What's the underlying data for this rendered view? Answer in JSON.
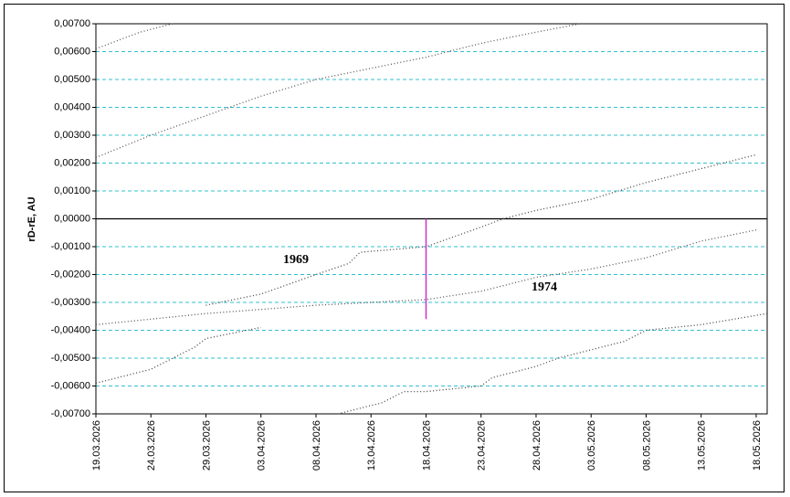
{
  "chart_data": {
    "type": "line",
    "y_label": "rD-rE, AU",
    "annotations": [
      {
        "text": "1969"
      },
      {
        "text": "1974"
      }
    ],
    "xlim": [
      "19.03.2026",
      "19.05.2026"
    ],
    "xticks": [
      "19.03.2026",
      "24.03.2026",
      "29.03.2026",
      "03.04.2026",
      "08.04.2026",
      "13.04.2026",
      "18.04.2026",
      "23.04.2026",
      "28.04.2026",
      "03.05.2026",
      "08.05.2026",
      "13.05.2026",
      "18.05.2026"
    ],
    "ylim": [
      -0.007,
      0.007
    ],
    "yticks": [
      {
        "value": -0.007,
        "label": "-0,00700"
      },
      {
        "value": -0.006,
        "label": "-0,00600"
      },
      {
        "value": -0.005,
        "label": "-0,00500"
      },
      {
        "value": -0.004,
        "label": "-0,00400"
      },
      {
        "value": -0.003,
        "label": "-0,00300"
      },
      {
        "value": -0.002,
        "label": "-0,00200"
      },
      {
        "value": -0.001,
        "label": "-0,00100"
      },
      {
        "value": 0,
        "label": "0,00000"
      },
      {
        "value": 0.001,
        "label": "0,00100"
      },
      {
        "value": 0.002,
        "label": "0,00200"
      },
      {
        "value": 0.003,
        "label": "0,00300"
      },
      {
        "value": 0.004,
        "label": "0,00400"
      },
      {
        "value": 0.005,
        "label": "0,00500"
      },
      {
        "value": 0.006,
        "label": "0,00600"
      },
      {
        "value": 0.007,
        "label": "0,00700"
      }
    ],
    "grid": true,
    "series": [
      {
        "color": "#555555",
        "style": "dotted",
        "x": [
          "19.03.2026",
          "21.03.2026",
          "23.03.2026",
          "26.03.2026"
        ],
        "values": [
          0.0061,
          0.0064,
          0.0067,
          0.007
        ]
      },
      {
        "color": "#555555",
        "style": "dotted",
        "x": [
          "19.03.2026",
          "24.03.2026",
          "29.03.2026",
          "03.04.2026",
          "08.04.2026",
          "13.04.2026",
          "18.04.2026",
          "23.04.2026",
          "28.04.2026",
          "02.05.2026"
        ],
        "values": [
          0.0022,
          0.003,
          0.0037,
          0.0044,
          0.005,
          0.0054,
          0.0058,
          0.0063,
          0.0067,
          0.007
        ]
      },
      {
        "color": "#444444",
        "style": "dotted",
        "x": [
          "29.03.2026",
          "03.04.2026",
          "08.04.2026",
          "11.04.2026",
          "12.04.2026",
          "15.04.2026",
          "18.04.2026",
          "23.04.2026",
          "25.04.2026",
          "28.04.2026",
          "03.05.2026",
          "08.05.2026",
          "13.05.2026",
          "17.05.2026",
          "18.05.2026"
        ],
        "values": [
          -0.0031,
          -0.0027,
          -0.002,
          -0.0016,
          -0.0012,
          -0.0011,
          -0.001,
          -0.0003,
          0,
          0.0003,
          0.0007,
          0.0013,
          0.0018,
          0.0022,
          0.0023
        ]
      },
      {
        "color": "#555555",
        "style": "dotted",
        "x": [
          "19.03.2026",
          "29.03.2026",
          "08.04.2026",
          "18.04.2026",
          "23.04.2026",
          "28.04.2026",
          "03.05.2026",
          "08.05.2026",
          "13.05.2026",
          "18.05.2026"
        ],
        "values": [
          -0.0038,
          -0.0034,
          -0.0031,
          -0.0029,
          -0.0026,
          -0.0021,
          -0.0018,
          -0.0014,
          -0.0008,
          -0.0004
        ]
      },
      {
        "color": "#444444",
        "style": "dotted",
        "x": [
          "19.03.2026",
          "24.03.2026",
          "28.03.2026",
          "29.03.2026",
          "03.04.2026"
        ],
        "values": [
          -0.0059,
          -0.0054,
          -0.0046,
          -0.0043,
          -0.0039
        ]
      },
      {
        "color": "#444444",
        "style": "dotted",
        "x": [
          "10.04.2026",
          "14.04.2026",
          "16.04.2026",
          "18.04.2026",
          "23.04.2026",
          "24.04.2026",
          "28.04.2026",
          "30.04.2026",
          "03.05.2026",
          "06.05.2026",
          "08.05.2026",
          "13.05.2026",
          "19.05.2026"
        ],
        "values": [
          -0.007,
          -0.0066,
          -0.0062,
          -0.0062,
          -0.006,
          -0.0057,
          -0.0053,
          -0.005,
          -0.0047,
          -0.0044,
          -0.004,
          -0.0038,
          -0.0034
        ]
      },
      {
        "color": "#cc33cc",
        "style": "solid",
        "x": [
          "18.04.2026",
          "18.04.2026"
        ],
        "values": [
          0,
          -0.0036
        ]
      }
    ]
  }
}
